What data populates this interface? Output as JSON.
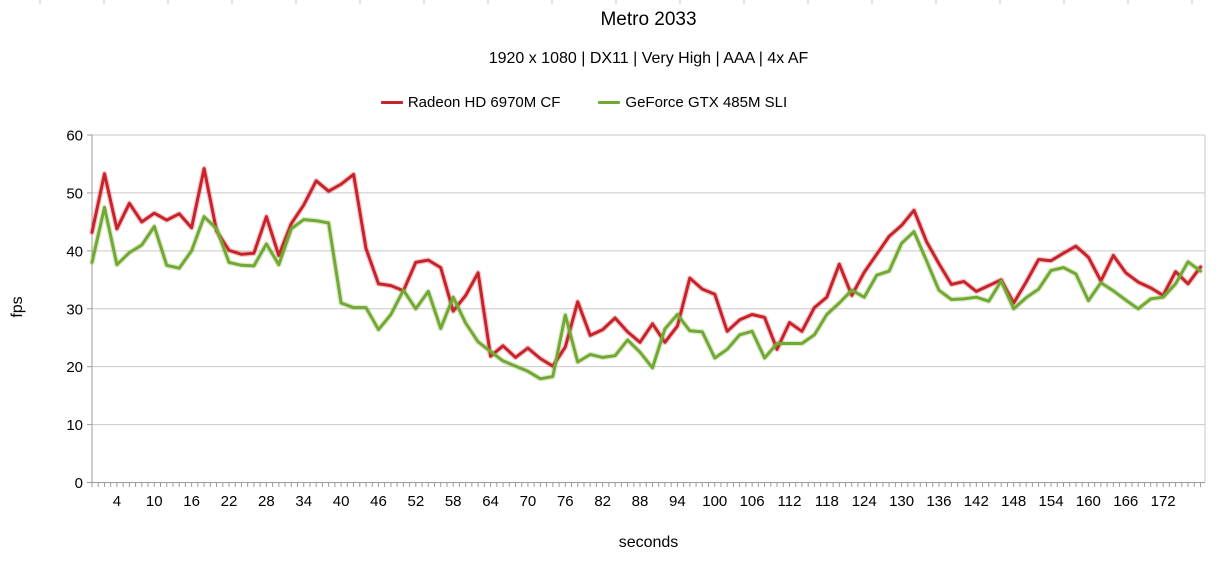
{
  "header": {
    "title": "Metro 2033",
    "subtitle": "1920 x 1080 | DX11 | Very High | AAA | 4x AF"
  },
  "axes": {
    "y": {
      "label": "fps",
      "min": 0,
      "max": 60,
      "ticks": [
        0,
        10,
        20,
        30,
        40,
        50,
        60
      ]
    },
    "x": {
      "label": "seconds",
      "tick_labels": [
        4,
        10,
        16,
        22,
        28,
        34,
        40,
        46,
        52,
        58,
        64,
        70,
        76,
        82,
        88,
        94,
        100,
        106,
        112,
        118,
        124,
        130,
        136,
        142,
        148,
        154,
        160,
        166,
        172
      ],
      "minor_tick_step_seconds": 1
    }
  },
  "colors": {
    "radeon_red": "#c8222b",
    "geforce_green": "#72a932",
    "gridline": "#c9c9c9",
    "axis_line": "#9c9c9c",
    "top_ruler_tick": "#c9c9c9",
    "background": "#ffffff"
  },
  "chart_data": {
    "type": "line",
    "title": "Metro 2033",
    "subtitle": "1920 x 1080 | DX11 | Very High | AAA | 4x AF",
    "xlabel": "seconds",
    "ylabel": "fps",
    "ylim": [
      0,
      60
    ],
    "xlim_seconds": [
      0,
      178
    ],
    "x_start": 0,
    "x_step": 2,
    "grid": "horizontal",
    "legend_position": "top",
    "series": [
      {
        "name": "Radeon HD 6970M CF",
        "color": "#c8222b",
        "values": [
          43.2,
          53.3,
          43.8,
          48.2,
          45.0,
          46.5,
          45.3,
          46.4,
          44.0,
          54.2,
          43.4,
          40.1,
          39.4,
          39.6,
          45.9,
          39.2,
          44.7,
          47.9,
          52.1,
          50.3,
          51.5,
          53.2,
          40.4,
          34.3,
          34.0,
          33.1,
          38.0,
          38.4,
          37.1,
          29.6,
          32.3,
          36.2,
          21.8,
          23.6,
          21.6,
          23.2,
          21.4,
          20.1,
          23.4,
          31.2,
          25.4,
          26.4,
          28.4,
          26.0,
          24.2,
          27.4,
          24.2,
          27.0,
          35.3,
          33.4,
          32.5,
          26.1,
          28.1,
          29.0,
          28.5,
          23.0,
          27.6,
          26.1,
          30.2,
          32.0,
          37.7,
          32.3,
          36.3,
          39.4,
          42.5,
          44.4,
          47.0,
          41.6,
          37.8,
          34.2,
          34.7,
          33.0,
          34.0,
          35.0,
          31.0,
          34.6,
          38.5,
          38.3,
          39.6,
          40.8,
          38.9,
          34.8,
          39.2,
          36.2,
          34.6,
          33.6,
          32.3,
          36.4,
          34.3,
          37.2
        ]
      },
      {
        "name": "GeForce GTX 485M SLI",
        "color": "#72a932",
        "values": [
          38.0,
          47.5,
          37.6,
          39.7,
          41.0,
          44.2,
          37.5,
          37.0,
          40.0,
          45.9,
          43.8,
          38.0,
          37.5,
          37.4,
          41.2,
          37.6,
          43.8,
          45.4,
          45.2,
          44.8,
          31.0,
          30.2,
          30.2,
          26.4,
          29.0,
          33.2,
          30.0,
          33.0,
          26.6,
          32.0,
          27.5,
          24.3,
          22.6,
          21.0,
          20.1,
          19.2,
          17.9,
          18.3,
          28.9,
          20.8,
          22.1,
          21.6,
          21.9,
          24.6,
          22.5,
          19.8,
          26.5,
          29.0,
          26.2,
          26.0,
          21.5,
          23.0,
          25.5,
          26.1,
          21.5,
          24.0,
          24.0,
          24.0,
          25.5,
          29.0,
          31.0,
          33.2,
          32.0,
          35.8,
          36.5,
          41.3,
          43.3,
          38.3,
          33.2,
          31.6,
          31.7,
          32.0,
          31.3,
          34.8,
          30.0,
          31.9,
          33.4,
          36.6,
          37.1,
          36.0,
          31.4,
          34.5,
          33.1,
          31.5,
          30.0,
          31.7,
          32.0,
          34.3,
          38.1,
          36.5
        ]
      }
    ]
  }
}
